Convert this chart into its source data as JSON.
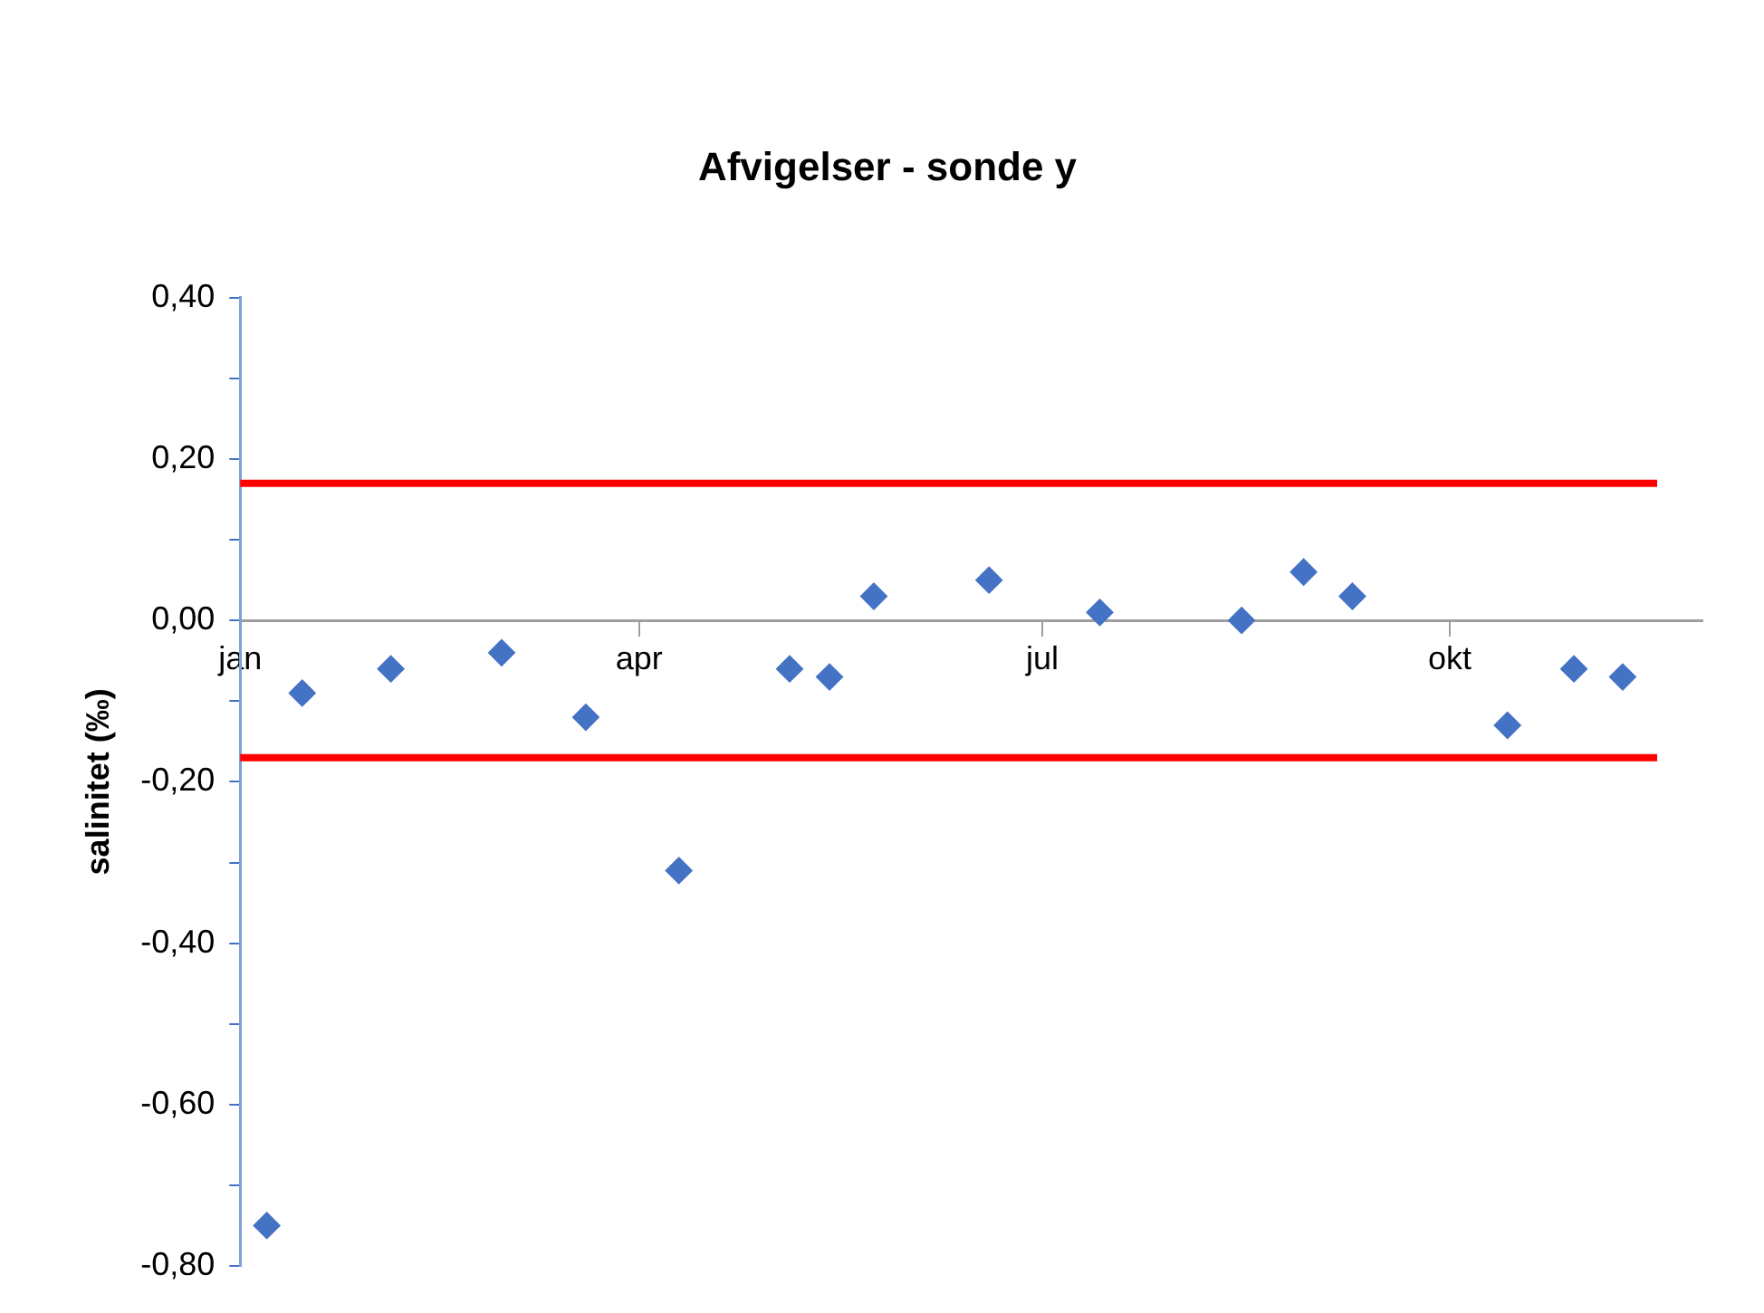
{
  "chart_data": {
    "type": "scatter",
    "title": "Afvigelser - sonde y",
    "ylabel": "salinitet (‰)",
    "x": [
      "--01-07",
      "--01-15",
      "--02-04",
      "--03-01",
      "--03-20",
      "--04-10",
      "--05-05",
      "--05-14",
      "--05-24",
      "--06-19",
      "--07-14",
      "--08-15",
      "--08-29",
      "--09-09",
      "--10-14",
      "--10-29",
      "--11-09"
    ],
    "series": [
      {
        "color": "#4472c4",
        "values": [
          -0.75,
          -0.09,
          -0.06,
          -0.04,
          -0.12,
          -0.31,
          -0.06,
          -0.07,
          0.03,
          0.05,
          0.01,
          0.0,
          0.06,
          0.03,
          -0.13,
          -0.06,
          -0.07
        ]
      }
    ],
    "xlim": [
      "--01-01",
      "--11-27"
    ],
    "xticks": [
      {
        "value": "--01-01",
        "label": "jan"
      },
      {
        "value": "--04-01",
        "label": "apr"
      },
      {
        "value": "--07-01",
        "label": "jul"
      },
      {
        "value": "--10-01",
        "label": "okt"
      }
    ],
    "ylim": [
      -0.8,
      0.4
    ],
    "yticks": [
      {
        "value": 0.4,
        "label": "0,40"
      },
      {
        "value": 0.3,
        "label": null
      },
      {
        "value": 0.2,
        "label": "0,20"
      },
      {
        "value": 0.1,
        "label": null
      },
      {
        "value": 0,
        "label": "0,00"
      },
      {
        "value": -0.1,
        "label": null
      },
      {
        "value": -0.2,
        "label": "-0,20"
      },
      {
        "value": -0.3,
        "label": null
      },
      {
        "value": -0.4,
        "label": "-0,40"
      },
      {
        "value": -0.5,
        "label": null
      },
      {
        "value": -0.6,
        "label": "-0,60"
      },
      {
        "value": -0.7,
        "label": null
      },
      {
        "value": -0.8,
        "label": "-0,80"
      }
    ],
    "ref_lines": [
      {
        "axis": "y",
        "value": 0.17,
        "label": null,
        "color": "#ff0000"
      },
      {
        "axis": "y",
        "value": -0.17,
        "label": null,
        "color": "#ff0000"
      }
    ],
    "grid": false,
    "legend": false,
    "marker": "diamond"
  }
}
